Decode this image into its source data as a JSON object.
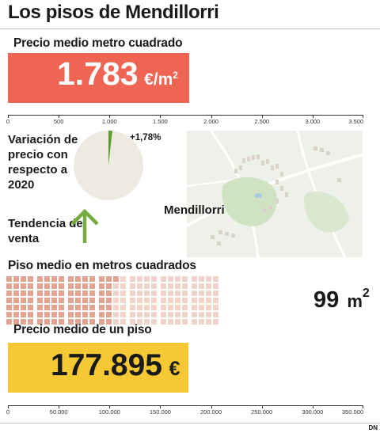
{
  "title": "Los pisos de Mendillorri",
  "colors": {
    "price_bar": "#ee6553",
    "piso_bar": "#f6c934",
    "pie_bg": "#eeeae2",
    "pie_slice": "#5a9e2e",
    "arrow": "#74aa3e",
    "grid_filled": "#e3a392",
    "grid_empty": "#f0d4ca"
  },
  "price_sqm": {
    "label": "Precio medio metro cuadrado",
    "value_text": "1.783",
    "unit_text": "€/m",
    "unit_sup": "2"
  },
  "variation": {
    "label": "Variación de precio con respecto a 2020",
    "value_text": "+1,78%",
    "fraction": 0.0178
  },
  "trend": {
    "label": "Tendencia de venta",
    "icon": "arrow-up-icon"
  },
  "map": {
    "label": "Mendillorri"
  },
  "sqm": {
    "label": "Piso medio en metros cuadrados",
    "value_text": "99",
    "unit_text": "m",
    "unit_sup": "2",
    "grid": {
      "filled": 99,
      "total": 196
    }
  },
  "piso": {
    "label": "Precio medio de un piso",
    "value_text": "177.895",
    "unit_text": "€"
  },
  "credit": "DN",
  "chart_data": [
    {
      "type": "bar",
      "title": "Precio medio metro cuadrado",
      "categories": [
        "Mendillorri"
      ],
      "values": [
        1783
      ],
      "xlim": [
        0,
        3500
      ],
      "ticks": [
        0,
        500,
        1000,
        1500,
        2000,
        2500,
        3000,
        3500
      ],
      "tick_labels": [
        "0",
        "500",
        "1.000",
        "1.500",
        "2.000",
        "2.500",
        "3.000",
        "3.500"
      ]
    },
    {
      "type": "pie",
      "title": "Variación de precio con respecto a 2020",
      "values": [
        1.78,
        98.22
      ],
      "labels": [
        "+1,78%",
        ""
      ]
    },
    {
      "type": "bar",
      "title": "Precio medio de un piso",
      "categories": [
        "Mendillorri"
      ],
      "values": [
        177895
      ],
      "xlim": [
        0,
        350000
      ],
      "ticks": [
        0,
        50000,
        100000,
        150000,
        200000,
        250000,
        300000,
        350000
      ],
      "tick_labels": [
        "0",
        "50.000",
        "100.000",
        "150.000",
        "200.000",
        "250.000",
        "300.000",
        "350.000"
      ]
    }
  ]
}
